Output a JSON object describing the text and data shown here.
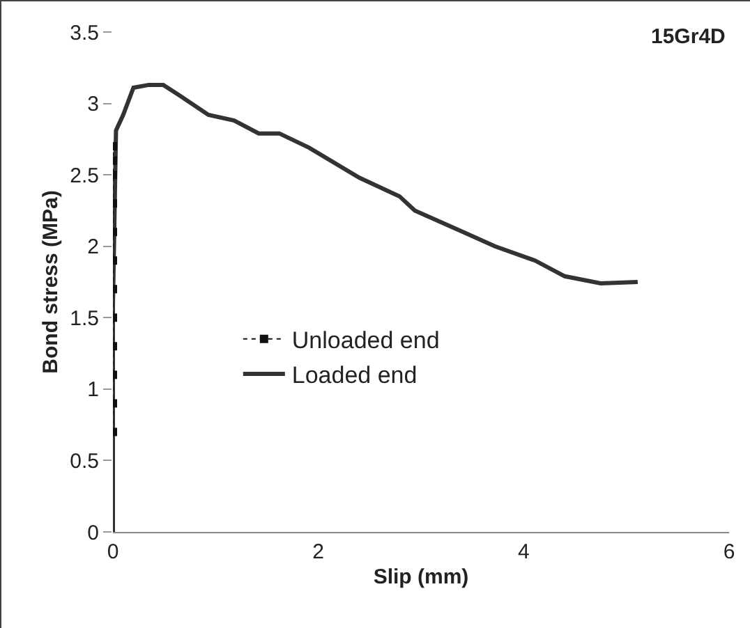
{
  "chart_data": {
    "type": "line",
    "title": "15Gr4D",
    "xlabel": "Slip (mm)",
    "ylabel": "Bond stress (MPa)",
    "xlim": [
      0,
      6
    ],
    "xticks": [
      0,
      2,
      4,
      6
    ],
    "ylim": [
      0,
      3.5
    ],
    "yticks": [
      0,
      0.5,
      1,
      1.5,
      2,
      2.5,
      3,
      3.5
    ],
    "grid": false,
    "legend": "center left",
    "series": [
      {
        "name": "Loaded end",
        "color": "#333333",
        "line_style": "solid",
        "marker": "none",
        "x": [
          0,
          0,
          0.03,
          0.1,
          0.2,
          0.35,
          0.49,
          0.64,
          0.93,
          1.18,
          1.42,
          1.62,
          1.91,
          2.4,
          2.79,
          2.94,
          3.38,
          3.72,
          4.11,
          4.4,
          4.75,
          5.11
        ],
        "values": [
          0,
          1.58,
          2.81,
          2.92,
          3.11,
          3.13,
          3.13,
          3.06,
          2.92,
          2.88,
          2.79,
          2.79,
          2.69,
          2.48,
          2.35,
          2.25,
          2.11,
          2.0,
          1.9,
          1.79,
          1.74,
          1.75
        ]
      },
      {
        "name": "Unloaded end",
        "color": "#111111",
        "line_style": "dotted",
        "marker": "square",
        "x": [
          0,
          0,
          0,
          0,
          0,
          0,
          0,
          0,
          0,
          0,
          0,
          0
        ],
        "values": [
          0.7,
          0.9,
          1.1,
          1.3,
          1.5,
          1.7,
          1.9,
          2.1,
          2.3,
          2.5,
          2.6,
          2.7
        ]
      }
    ]
  }
}
